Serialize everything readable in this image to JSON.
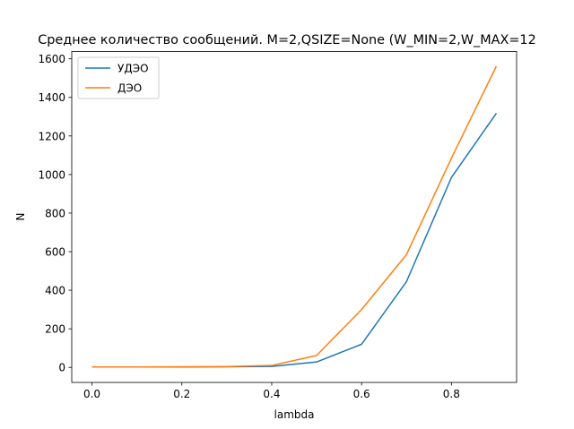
{
  "chart_data": {
    "type": "line",
    "title": "Среднее количество сообщений. M=2,QSIZE=None (W_MIN=2,W_MAX=12",
    "xlabel": "lambda",
    "ylabel": "N",
    "xlim": [
      -0.045,
      0.945
    ],
    "ylim": [
      -78,
      1638
    ],
    "x": [
      0.0,
      0.1,
      0.2,
      0.3,
      0.4,
      0.5,
      0.6,
      0.7,
      0.8,
      0.9
    ],
    "xticks": [
      0.0,
      0.2,
      0.4,
      0.6,
      0.8
    ],
    "xtick_labels": [
      "0.0",
      "0.2",
      "0.4",
      "0.6",
      "0.8"
    ],
    "yticks": [
      0,
      200,
      400,
      600,
      800,
      1000,
      1200,
      1400,
      1600
    ],
    "ytick_labels": [
      "0",
      "200",
      "400",
      "600",
      "800",
      "1000",
      "1200",
      "1400",
      "1600"
    ],
    "grid": false,
    "legend_position": "top-left",
    "series": [
      {
        "name": "УДЭО",
        "color": "#1f77b4",
        "values": [
          2,
          2,
          2,
          3,
          5,
          28,
          120,
          445,
          985,
          1318
        ]
      },
      {
        "name": "ДЭО",
        "color": "#ff7f0e",
        "values": [
          2,
          2,
          3,
          4,
          10,
          62,
          300,
          585,
          1085,
          1562
        ]
      }
    ]
  }
}
